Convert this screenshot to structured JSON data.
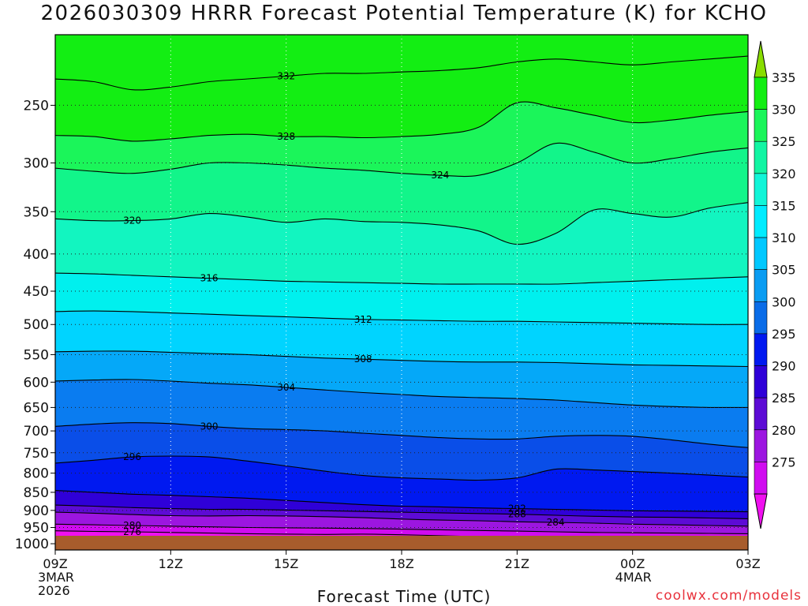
{
  "title": "2026030309 HRRR Forecast Potential Temperature (K) for KCHO",
  "xlabel": "Forecast Time (UTC)",
  "credit": "coolwx.com/models",
  "chart_data": {
    "type": "heatmap",
    "title": "2026030309 HRRR Forecast Potential Temperature (K) for KCHO",
    "xlabel": "Forecast Time (UTC)",
    "ylabel": "",
    "x_ticks": [
      {
        "label": "09Z",
        "sub1": "3MAR",
        "sub2": "2026",
        "hour": 0
      },
      {
        "label": "12Z",
        "sub1": "",
        "sub2": "",
        "hour": 3
      },
      {
        "label": "15Z",
        "sub1": "",
        "sub2": "",
        "hour": 6
      },
      {
        "label": "18Z",
        "sub1": "",
        "sub2": "",
        "hour": 9
      },
      {
        "label": "21Z",
        "sub1": "",
        "sub2": "",
        "hour": 12
      },
      {
        "label": "00Z",
        "sub1": "4MAR",
        "sub2": "",
        "hour": 15
      },
      {
        "label": "03Z",
        "sub1": "",
        "sub2": "",
        "hour": 18
      }
    ],
    "xlim_hours": [
      0,
      18
    ],
    "y_scale": "log (pressure, inverted)",
    "ylim_hpa": [
      1020,
      200
    ],
    "y_ticks": [
      "250",
      "300",
      "350",
      "400",
      "450",
      "500",
      "550",
      "600",
      "650",
      "700",
      "750",
      "800",
      "850",
      "900",
      "950",
      "1000"
    ],
    "y_tick_values": [
      250,
      300,
      350,
      400,
      450,
      500,
      550,
      600,
      650,
      700,
      750,
      800,
      850,
      900,
      950,
      1000
    ],
    "grid": "dotted",
    "colorbar": {
      "labels": [
        "335",
        "330",
        "325",
        "320",
        "315",
        "310",
        "305",
        "300",
        "295",
        "290",
        "285",
        "280",
        "275"
      ],
      "values": [
        335,
        330,
        325,
        320,
        315,
        310,
        305,
        300,
        295,
        290,
        285,
        280,
        275
      ],
      "colors": [
        "#13ee13",
        "#1bf55a",
        "#12f5a3",
        "#12f5d8",
        "#00ecff",
        "#00c8ff",
        "#0a9cf2",
        "#0a6ce8",
        "#0019f0",
        "#2f00d8",
        "#5d0bd5",
        "#9c16e0",
        "#d00cf0",
        "#f010f0"
      ],
      "top_arrow_color": "#88dd00",
      "bottom_arrow_color": "#f010f0"
    },
    "ground_color": "#a75c2c",
    "series": [
      {
        "name": "276",
        "values": [
          960,
          962,
          963,
          965,
          967,
          969,
          970,
          971,
          970,
          972,
          975,
          978,
          980,
          982,
          984,
          986,
          988,
          990,
          992
        ]
      },
      {
        "name": "280",
        "values": [
          940,
          942,
          944,
          946,
          948,
          950,
          951,
          952,
          953,
          955,
          957,
          959,
          961,
          963,
          965,
          966,
          967,
          968,
          969
        ]
      },
      {
        "name": "284",
        "values": [
          905,
          908,
          912,
          915,
          916,
          915,
          916,
          918,
          921,
          925,
          928,
          930,
          933,
          935,
          937,
          940,
          942,
          944,
          946
        ]
      },
      {
        "name": "288",
        "values": [
          885,
          888,
          892,
          895,
          897,
          897,
          899,
          901,
          903,
          905,
          907,
          909,
          911,
          914,
          917,
          919,
          920,
          922,
          924
        ]
      },
      {
        "name": "292",
        "values": [
          845,
          850,
          855,
          858,
          862,
          866,
          872,
          878,
          884,
          888,
          890,
          893,
          895,
          897,
          899,
          901,
          902,
          903,
          904
        ]
      },
      {
        "name": "296",
        "values": [
          775,
          768,
          760,
          758,
          760,
          770,
          782,
          795,
          806,
          812,
          815,
          818,
          812,
          790,
          792,
          796,
          800,
          805,
          810
        ]
      },
      {
        "name": "300",
        "values": [
          690,
          685,
          682,
          684,
          690,
          695,
          697,
          700,
          705,
          710,
          715,
          718,
          718,
          712,
          710,
          712,
          720,
          730,
          738
        ]
      },
      {
        "name": "304",
        "values": [
          598,
          596,
          595,
          598,
          602,
          605,
          610,
          615,
          620,
          624,
          628,
          630,
          632,
          635,
          640,
          645,
          648,
          650,
          650
        ]
      },
      {
        "name": "308",
        "values": [
          545,
          544,
          544,
          546,
          548,
          550,
          553,
          556,
          558,
          560,
          562,
          563,
          563,
          564,
          566,
          568,
          569,
          570,
          571
        ]
      },
      {
        "name": "312",
        "values": [
          480,
          479,
          480,
          482,
          484,
          486,
          488,
          490,
          492,
          493,
          494,
          495,
          495,
          496,
          497,
          498,
          499,
          500,
          500
        ]
      },
      {
        "name": "316",
        "values": [
          425,
          426,
          428,
          430,
          432,
          434,
          436,
          437,
          438,
          439,
          440,
          440,
          440,
          440,
          438,
          436,
          434,
          432,
          430
        ]
      },
      {
        "name": "320",
        "values": [
          358,
          360,
          360,
          358,
          352,
          356,
          362,
          358,
          361,
          362,
          365,
          372,
          388,
          375,
          348,
          352,
          356,
          346,
          340
        ]
      },
      {
        "name": "324",
        "values": [
          305,
          308,
          310,
          306,
          300,
          300,
          302,
          305,
          307,
          310,
          312,
          312,
          300,
          282,
          290,
          300,
          296,
          290,
          286
        ]
      },
      {
        "name": "328",
        "values": [
          275,
          276,
          280,
          278,
          275,
          274,
          276,
          276,
          277,
          276,
          274,
          268,
          248,
          252,
          258,
          264,
          262,
          258,
          255
        ]
      },
      {
        "name": "332",
        "values": [
          230,
          232,
          238,
          236,
          232,
          230,
          228,
          226,
          226,
          225,
          224,
          222,
          218,
          216,
          218,
          220,
          218,
          216,
          214
        ]
      }
    ]
  }
}
